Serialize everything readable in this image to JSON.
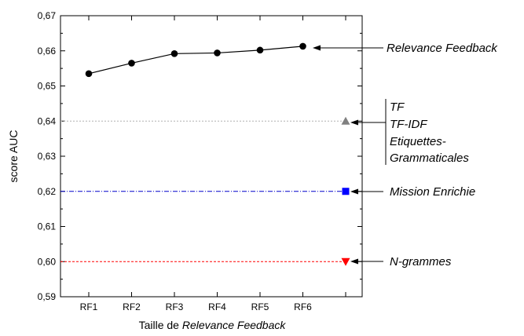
{
  "chart_data": {
    "type": "line",
    "title": "",
    "xlabel_parts": [
      "Taille de ",
      "Relevance Feedback"
    ],
    "ylabel": "score AUC",
    "categories": [
      "RF1",
      "RF2",
      "RF3",
      "RF4",
      "RF5",
      "RF6"
    ],
    "ylim": [
      0.59,
      0.67
    ],
    "y_ticks": [
      "0,59",
      "0,60",
      "0,61",
      "0,62",
      "0,63",
      "0,64",
      "0,65",
      "0,66",
      "0,67"
    ],
    "grid": false,
    "series": [
      {
        "name": "Relevance Feedback",
        "values": [
          0.6535,
          0.6565,
          0.6592,
          0.6594,
          0.6602,
          0.6613
        ],
        "color": "#000000",
        "marker": "circle"
      }
    ],
    "reference_lines": [
      {
        "key": "tf",
        "value": 0.64,
        "color": "#b0b0b0",
        "marker": "triangle-up",
        "marker_color": "#808080",
        "dash": "2,2"
      },
      {
        "key": "mission",
        "value": 0.62,
        "color": "#0000cc",
        "marker": "square",
        "marker_color": "#0000ff",
        "dash": "6,2,1,2"
      },
      {
        "key": "ngram",
        "value": 0.6,
        "color": "#ff0000",
        "marker": "triangle-down",
        "marker_color": "#ff0000",
        "dash": "3,2"
      }
    ],
    "annotations": {
      "relevance": "Relevance Feedback",
      "tf_lines": [
        "TF",
        "TF-IDF",
        "Etiquettes-",
        "Grammaticales"
      ],
      "mission": "Mission Enrichie",
      "ngram": "N-grammes"
    }
  }
}
